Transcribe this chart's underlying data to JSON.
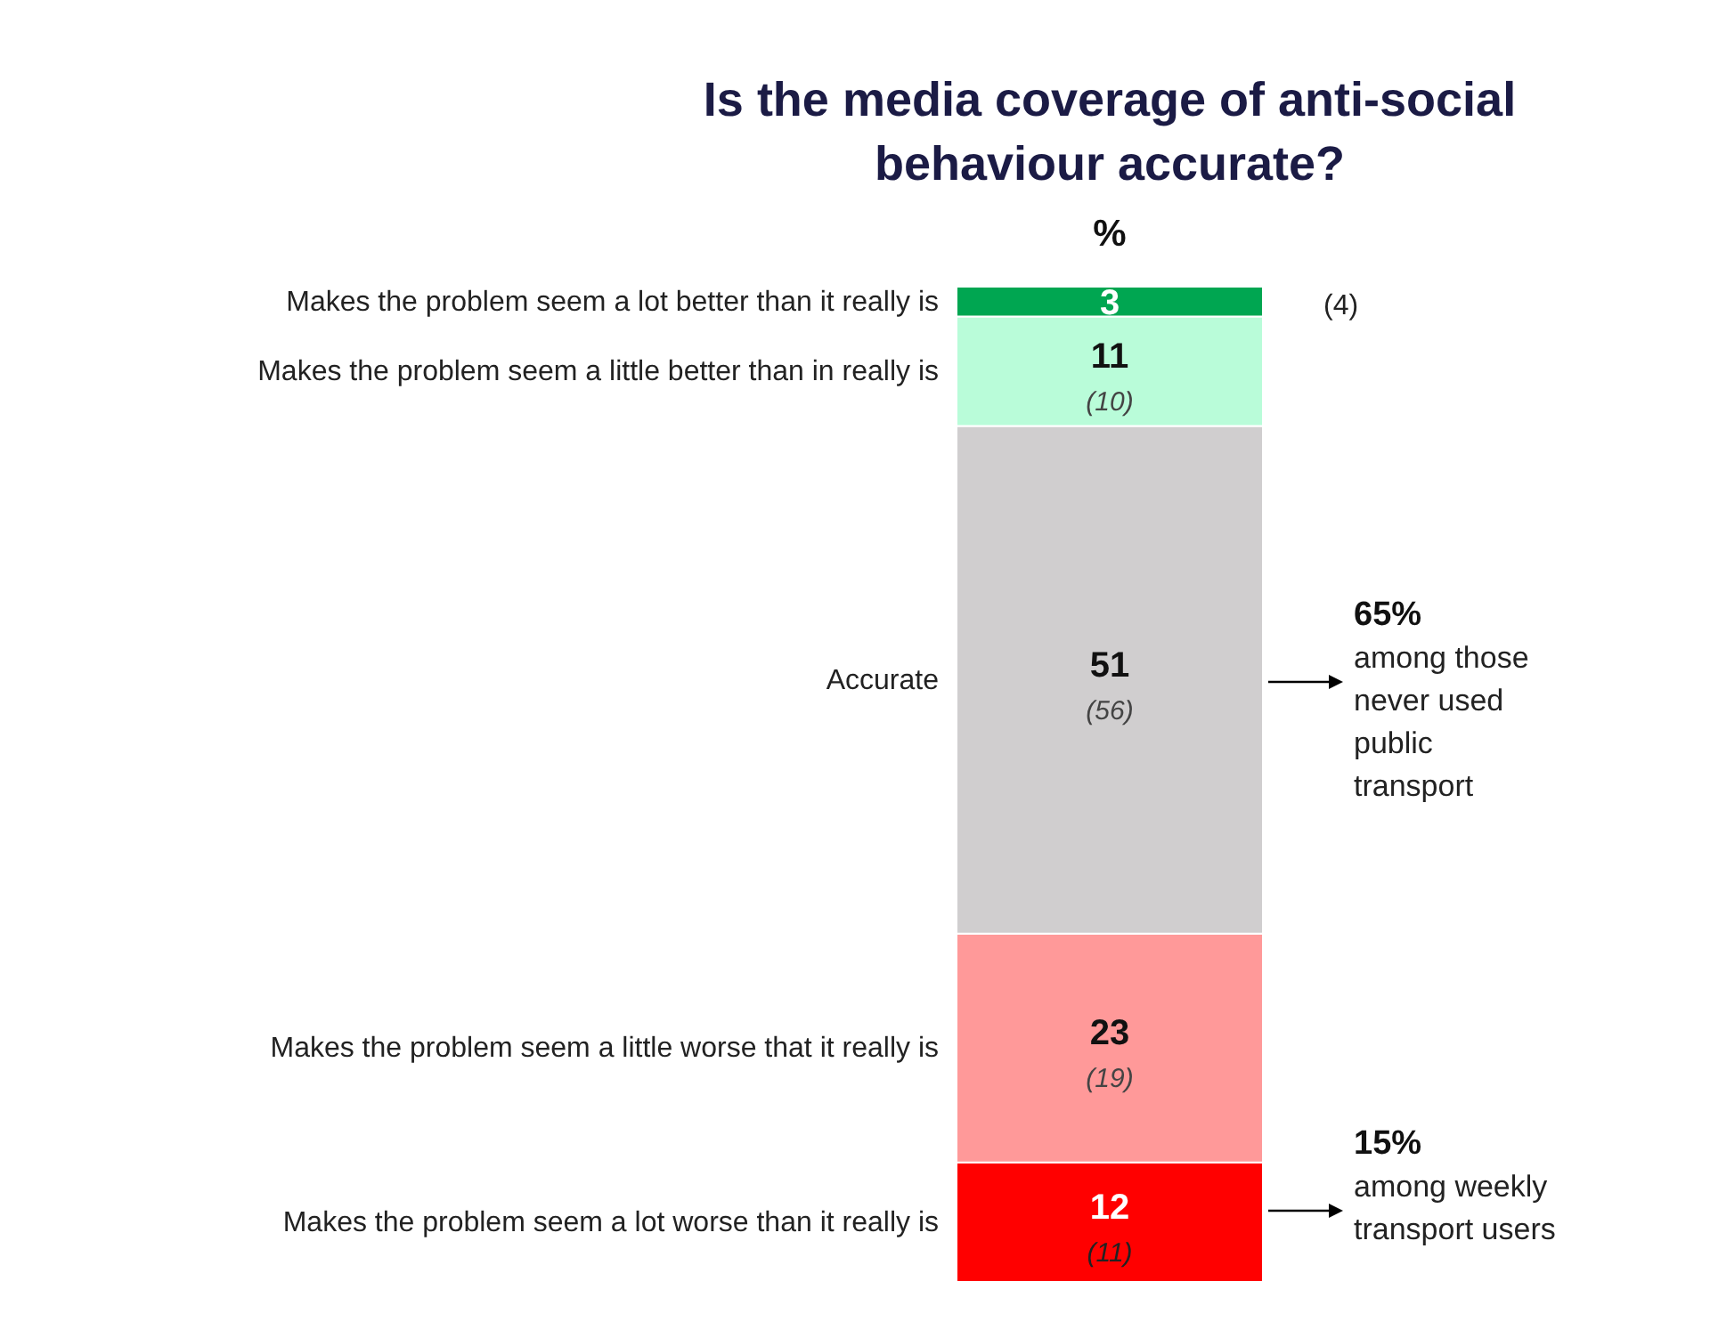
{
  "chart_data": {
    "type": "bar",
    "title": "Is the media coverage of anti-social behaviour accurate?",
    "subtitle": "%",
    "stacked": true,
    "categories": [
      null
    ],
    "data_labels": true,
    "series": [
      {
        "name": "Makes the problem seem a lot worse than it really is",
        "color": "#ff0000",
        "values": [
          12
        ]
      },
      {
        "name": "Makes the problem seem a little worse that it really is",
        "color": "#ff9999",
        "values": [
          23
        ]
      },
      {
        "name": "Accurate",
        "color": "#d0cecf",
        "values": [
          51
        ]
      },
      {
        "name": "Makes the problem seem a little better than in really is",
        "color": "#b9fcd9",
        "values": [
          11
        ]
      },
      {
        "name": "Makes the problem seem a lot better than it really is",
        "color": "#00a651",
        "values": [
          3
        ]
      }
    ],
    "annotations": [
      "(11)",
      "(19)",
      "(56)",
      "(10)",
      "(4)",
      "65% among those never used public transport",
      "15% among weekly transport users"
    ]
  }
}
